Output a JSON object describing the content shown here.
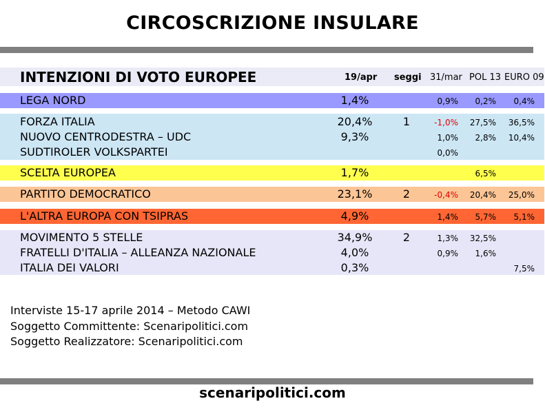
{
  "title": "CIRCOSCRIZIONE INSULARE",
  "chart_data": {
    "type": "table",
    "heading": "INTENZIONI DI VOTO EUROPEE",
    "columns": [
      "19/apr",
      "seggi",
      "31/mar",
      "POL 13",
      "EURO 09"
    ],
    "rows": [
      {
        "party": "LEGA NORD",
        "apr19": "1,4%",
        "seats": "",
        "mar31": "0,9%",
        "pol13": "0,2%",
        "euro09": "0,4%",
        "color": "#9999ff"
      },
      {
        "party": "FORZA ITALIA",
        "apr19": "20,4%",
        "seats": "1",
        "mar31": "-1,0%",
        "pol13": "27,5%",
        "euro09": "36,5%",
        "color": "#cce6f4"
      },
      {
        "party": "NUOVO CENTRODESTRA – UDC",
        "apr19": "9,3%",
        "seats": "",
        "mar31": "1,0%",
        "pol13": "2,8%",
        "euro09": "10,4%",
        "color": "#cce6f4"
      },
      {
        "party": "SUDTIROLER VOLKSPARTEI",
        "apr19": "",
        "seats": "",
        "mar31": "0,0%",
        "pol13": "",
        "euro09": "",
        "color": "#cce6f4"
      },
      {
        "party": "SCELTA EUROPEA",
        "apr19": "1,7%",
        "seats": "",
        "mar31": "",
        "pol13": "6,5%",
        "euro09": "",
        "color": "#ffff4d"
      },
      {
        "party": "PARTITO DEMOCRATICO",
        "apr19": "23,1%",
        "seats": "2",
        "mar31": "-0,4%",
        "pol13": "20,4%",
        "euro09": "25,0%",
        "color": "#fcc596"
      },
      {
        "party": "L'ALTRA EUROPA CON TSIPRAS",
        "apr19": "4,9%",
        "seats": "",
        "mar31": "1,4%",
        "pol13": "5,7%",
        "euro09": "5,1%",
        "color": "#ff6633"
      },
      {
        "party": "MOVIMENTO 5 STELLE",
        "apr19": "34,9%",
        "seats": "2",
        "mar31": "1,3%",
        "pol13": "32,5%",
        "euro09": "",
        "color": "#e6e6f8"
      },
      {
        "party": "FRATELLI D'ITALIA – ALLEANZA NAZIONALE",
        "apr19": "4,0%",
        "seats": "",
        "mar31": "0,9%",
        "pol13": "1,6%",
        "euro09": "",
        "color": "#e6e6f8"
      },
      {
        "party": "ITALIA DEI VALORI",
        "apr19": "0,3%",
        "seats": "",
        "mar31": "",
        "pol13": "",
        "euro09": "7,5%",
        "color": "#e6e6f8"
      }
    ]
  },
  "notes": [
    "Interviste 15-17 aprile 2014 – Metodo CAWI",
    "Soggetto Committente: Scenaripolitici.com",
    "Soggetto Realizzatore: Scenaripolitici.com"
  ],
  "footer": "scenaripolitici.com",
  "colors": {
    "rule": "#7f7f7f",
    "header_bg": "#ebebf7",
    "negative": "#e00000"
  }
}
